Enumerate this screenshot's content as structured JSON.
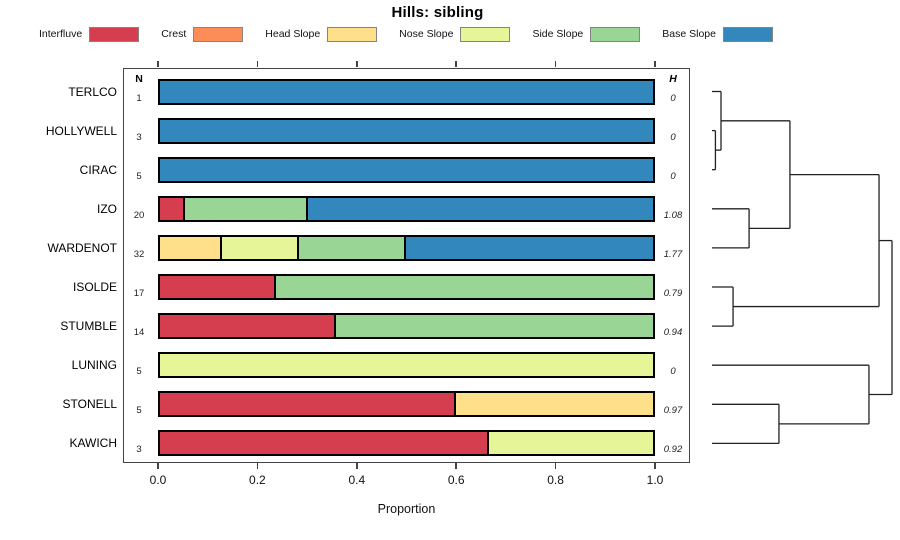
{
  "title": "Hills: sibling",
  "legend": {
    "items": [
      {
        "label": "Interfluve",
        "color": "#D53E4F"
      },
      {
        "label": "Crest",
        "color": "#FC8D59"
      },
      {
        "label": "Head Slope",
        "color": "#FEE08B"
      },
      {
        "label": "Nose Slope",
        "color": "#E6F598"
      },
      {
        "label": "Side Slope",
        "color": "#99D594"
      },
      {
        "label": "Base Slope",
        "color": "#3288BD"
      }
    ]
  },
  "columns": {
    "n_header": "N",
    "h_header": "H"
  },
  "xaxis": {
    "label": "Proportion",
    "tick_labels": [
      "0.0",
      "0.2",
      "0.4",
      "0.6",
      "0.8",
      "1.0"
    ],
    "tick_values": [
      0,
      0.2,
      0.4,
      0.6,
      0.8,
      1.0
    ]
  },
  "chart_data": {
    "type": "bar",
    "stacked": true,
    "orientation": "horizontal",
    "title": "Hills: sibling",
    "xlabel": "Proportion",
    "xlim": [
      0,
      1
    ],
    "grid": false,
    "legend_position": "top",
    "categories": [
      "TERLCO",
      "HOLLYWELL",
      "CIRAC",
      "IZO",
      "WARDENOT",
      "ISOLDE",
      "STUMBLE",
      "LUNING",
      "STONELL",
      "KAWICH"
    ],
    "classes": [
      "Interfluve",
      "Crest",
      "Head Slope",
      "Nose Slope",
      "Side Slope",
      "Base Slope"
    ],
    "colors": {
      "Interfluve": "#D53E4F",
      "Crest": "#FC8D59",
      "Head Slope": "#FEE08B",
      "Nose Slope": "#E6F598",
      "Side Slope": "#99D594",
      "Base Slope": "#3288BD"
    },
    "rows": [
      {
        "name": "TERLCO",
        "n": 1,
        "h": "0",
        "segments": [
          {
            "class": "Base Slope",
            "value": 1.0
          }
        ]
      },
      {
        "name": "HOLLYWELL",
        "n": 3,
        "h": "0",
        "segments": [
          {
            "class": "Base Slope",
            "value": 1.0
          }
        ]
      },
      {
        "name": "CIRAC",
        "n": 5,
        "h": "0",
        "segments": [
          {
            "class": "Base Slope",
            "value": 1.0
          }
        ]
      },
      {
        "name": "IZO",
        "n": 20,
        "h": "1.08",
        "segments": [
          {
            "class": "Interfluve",
            "value": 0.05
          },
          {
            "class": "Side Slope",
            "value": 0.25
          },
          {
            "class": "Base Slope",
            "value": 0.7
          }
        ]
      },
      {
        "name": "WARDENOT",
        "n": 32,
        "h": "1.77",
        "segments": [
          {
            "class": "Head Slope",
            "value": 0.125
          },
          {
            "class": "Nose Slope",
            "value": 0.156
          },
          {
            "class": "Side Slope",
            "value": 0.219
          },
          {
            "class": "Base Slope",
            "value": 0.5
          }
        ]
      },
      {
        "name": "ISOLDE",
        "n": 17,
        "h": "0.79",
        "segments": [
          {
            "class": "Interfluve",
            "value": 0.235
          },
          {
            "class": "Side Slope",
            "value": 0.765
          }
        ]
      },
      {
        "name": "STUMBLE",
        "n": 14,
        "h": "0.94",
        "segments": [
          {
            "class": "Interfluve",
            "value": 0.357
          },
          {
            "class": "Side Slope",
            "value": 0.643
          }
        ]
      },
      {
        "name": "LUNING",
        "n": 5,
        "h": "0",
        "segments": [
          {
            "class": "Nose Slope",
            "value": 1.0
          }
        ]
      },
      {
        "name": "STONELL",
        "n": 5,
        "h": "0.97",
        "segments": [
          {
            "class": "Interfluve",
            "value": 0.6
          },
          {
            "class": "Head Slope",
            "value": 0.4
          }
        ]
      },
      {
        "name": "KAWICH",
        "n": 3,
        "h": "0.92",
        "segments": [
          {
            "class": "Interfluve",
            "value": 0.667
          },
          {
            "class": "Nose Slope",
            "value": 0.333
          }
        ]
      }
    ],
    "dendrogram": {
      "leaves": [
        "TERLCO",
        "HOLLYWELL",
        "CIRAC",
        "IZO",
        "WARDENOT",
        "ISOLDE",
        "STUMBLE",
        "LUNING",
        "STONELL",
        "KAWICH"
      ],
      "merges": [
        {
          "id": "M1",
          "children": [
            "L1",
            "L2"
          ],
          "h": 0.019
        },
        {
          "id": "M2",
          "children": [
            "L0",
            "M1"
          ],
          "h": 0.05
        },
        {
          "id": "M3",
          "children": [
            "L3",
            "L4"
          ],
          "h": 0.206
        },
        {
          "id": "M4",
          "children": [
            "M2",
            "M3"
          ],
          "h": 0.433
        },
        {
          "id": "M5",
          "children": [
            "L5",
            "L6"
          ],
          "h": 0.117
        },
        {
          "id": "M6",
          "children": [
            "M4",
            "M5"
          ],
          "h": 0.928
        },
        {
          "id": "M7",
          "children": [
            "L8",
            "L9"
          ],
          "h": 0.372
        },
        {
          "id": "M8",
          "children": [
            "L7",
            "M7"
          ],
          "h": 0.872
        },
        {
          "id": "M9",
          "children": [
            "M6",
            "M8"
          ],
          "h": 1.0
        }
      ]
    }
  }
}
